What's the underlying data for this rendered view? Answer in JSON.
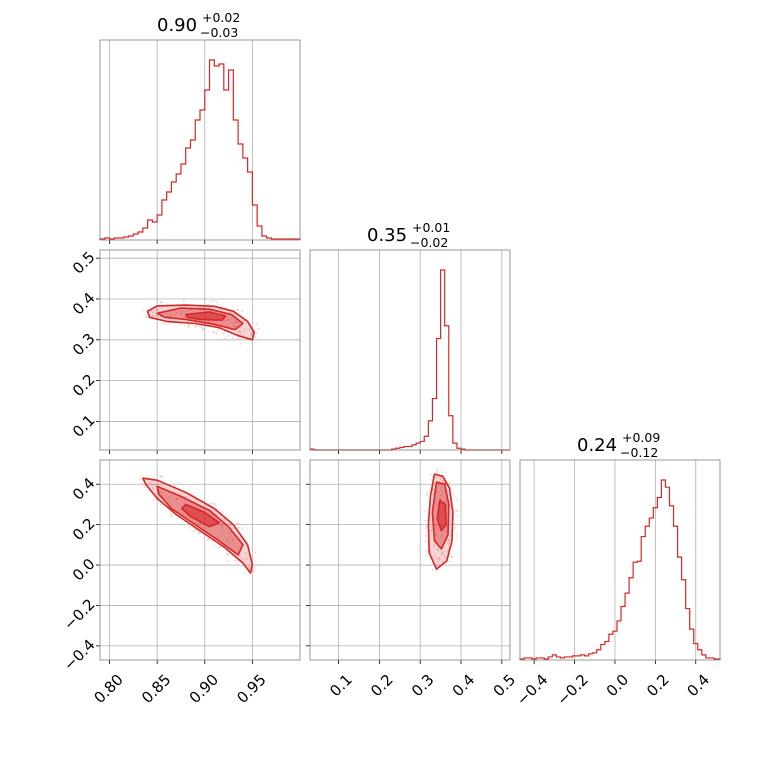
{
  "chart_data": {
    "type": "corner",
    "color": "#d62728",
    "parameters": [
      {
        "id": "p0",
        "range": [
          0.79,
          1.0
        ],
        "ticks": [
          0.8,
          0.85,
          0.9,
          0.95
        ],
        "tick_labels": [
          "0.80",
          "0.85",
          "0.90",
          "0.95"
        ],
        "title": {
          "value": "0.90",
          "plus": "+0.02",
          "minus": "−0.03"
        },
        "histogram": {
          "bins": [
            0.79,
            0.795,
            0.8,
            0.805,
            0.81,
            0.815,
            0.82,
            0.825,
            0.83,
            0.835,
            0.84,
            0.845,
            0.85,
            0.855,
            0.86,
            0.865,
            0.87,
            0.875,
            0.88,
            0.885,
            0.89,
            0.895,
            0.9,
            0.905,
            0.91,
            0.915,
            0.92,
            0.925,
            0.93,
            0.935,
            0.94,
            0.945,
            0.95,
            0.955,
            0.96,
            0.965,
            0.97,
            0.975,
            0.98,
            0.985,
            0.99,
            0.995,
            1.0
          ],
          "counts": [
            1,
            2,
            1,
            2,
            2,
            3,
            4,
            6,
            8,
            12,
            20,
            18,
            25,
            40,
            48,
            58,
            66,
            76,
            92,
            100,
            120,
            130,
            150,
            180,
            174,
            176,
            150,
            170,
            120,
            96,
            82,
            68,
            35,
            14,
            4,
            2,
            1,
            1,
            1,
            1,
            1,
            1
          ]
        }
      },
      {
        "id": "p1",
        "range": [
          0.03,
          0.52
        ],
        "ticks": [
          0.1,
          0.2,
          0.3,
          0.4,
          0.5
        ],
        "tick_labels": [
          "0.1",
          "0.2",
          "0.3",
          "0.4",
          "0.5"
        ],
        "title": {
          "value": "0.35",
          "plus": "+0.01",
          "minus": "−0.02"
        },
        "histogram": {
          "bins": [
            0.03,
            0.04,
            0.05,
            0.06,
            0.07,
            0.08,
            0.09,
            0.1,
            0.11,
            0.12,
            0.13,
            0.14,
            0.15,
            0.16,
            0.17,
            0.18,
            0.19,
            0.2,
            0.21,
            0.22,
            0.23,
            0.24,
            0.25,
            0.26,
            0.27,
            0.28,
            0.29,
            0.3,
            0.31,
            0.32,
            0.33,
            0.34,
            0.35,
            0.36,
            0.37,
            0.38,
            0.39,
            0.4,
            0.41,
            0.42,
            0.43,
            0.44,
            0.45,
            0.46,
            0.47,
            0.48,
            0.49,
            0.5,
            0.51,
            0.52
          ],
          "counts": [
            1,
            0,
            0,
            0,
            0,
            0,
            0,
            0,
            0,
            0,
            0,
            0,
            0,
            0,
            0,
            0,
            0,
            0,
            0,
            0,
            1,
            2,
            3,
            4,
            4,
            6,
            8,
            10,
            16,
            34,
            60,
            130,
            210,
            145,
            40,
            8,
            2,
            1,
            0,
            0,
            0,
            0,
            0,
            0,
            0,
            0,
            0,
            0,
            0
          ]
        }
      },
      {
        "id": "p2",
        "range": [
          -0.47,
          0.52
        ],
        "ticks": [
          -0.4,
          -0.2,
          0.0,
          0.2,
          0.4
        ],
        "tick_labels": [
          "−0.4",
          "−0.2",
          "0.0",
          "0.2",
          "0.4"
        ],
        "title": {
          "value": "0.24",
          "plus": "+0.09",
          "minus": "−0.12"
        },
        "histogram": {
          "bins": [
            -0.47,
            -0.45,
            -0.43,
            -0.41,
            -0.39,
            -0.37,
            -0.35,
            -0.33,
            -0.31,
            -0.29,
            -0.27,
            -0.25,
            -0.23,
            -0.21,
            -0.19,
            -0.17,
            -0.15,
            -0.13,
            -0.11,
            -0.09,
            -0.07,
            -0.05,
            -0.03,
            -0.01,
            0.01,
            0.03,
            0.05,
            0.07,
            0.09,
            0.11,
            0.13,
            0.15,
            0.17,
            0.19,
            0.21,
            0.23,
            0.25,
            0.27,
            0.29,
            0.31,
            0.33,
            0.35,
            0.37,
            0.39,
            0.41,
            0.43,
            0.45,
            0.47,
            0.49,
            0.52
          ],
          "counts": [
            1,
            2,
            2,
            1,
            2,
            2,
            1,
            3,
            5,
            3,
            2,
            3,
            3,
            4,
            4,
            5,
            4,
            6,
            7,
            10,
            15,
            18,
            25,
            28,
            38,
            52,
            65,
            80,
            95,
            96,
            120,
            130,
            138,
            148,
            158,
            175,
            168,
            150,
            130,
            100,
            78,
            50,
            30,
            16,
            10,
            5,
            2,
            2,
            1
          ]
        }
      }
    ],
    "pairs": [
      {
        "x": "p0",
        "y": "p1",
        "levels": [
          {
            "fill": 0.2,
            "points": [
              [
                0.84,
                0.37
              ],
              [
                0.85,
                0.383
              ],
              [
                0.88,
                0.385
              ],
              [
                0.91,
                0.382
              ],
              [
                0.93,
                0.37
              ],
              [
                0.945,
                0.345
              ],
              [
                0.952,
                0.318
              ],
              [
                0.95,
                0.3
              ],
              [
                0.935,
                0.31
              ],
              [
                0.915,
                0.33
              ],
              [
                0.89,
                0.34
              ],
              [
                0.86,
                0.345
              ],
              [
                0.842,
                0.355
              ]
            ]
          },
          {
            "fill": 0.4,
            "points": [
              [
                0.85,
                0.365
              ],
              [
                0.875,
                0.378
              ],
              [
                0.905,
                0.375
              ],
              [
                0.928,
                0.362
              ],
              [
                0.94,
                0.34
              ],
              [
                0.932,
                0.325
              ],
              [
                0.91,
                0.338
              ],
              [
                0.88,
                0.35
              ],
              [
                0.858,
                0.355
              ]
            ]
          },
          {
            "fill": 0.6,
            "points": [
              [
                0.88,
                0.362
              ],
              [
                0.905,
                0.368
              ],
              [
                0.922,
                0.358
              ],
              [
                0.918,
                0.348
              ],
              [
                0.895,
                0.35
              ],
              [
                0.882,
                0.355
              ]
            ]
          }
        ]
      },
      {
        "x": "p0",
        "y": "p2",
        "levels": [
          {
            "fill": 0.2,
            "points": [
              [
                0.835,
                0.43
              ],
              [
                0.85,
                0.42
              ],
              [
                0.88,
                0.36
              ],
              [
                0.91,
                0.28
              ],
              [
                0.93,
                0.2
              ],
              [
                0.945,
                0.1
              ],
              [
                0.95,
                0.0
              ],
              [
                0.948,
                -0.04
              ],
              [
                0.94,
                0.01
              ],
              [
                0.92,
                0.09
              ],
              [
                0.895,
                0.17
              ],
              [
                0.87,
                0.25
              ],
              [
                0.85,
                0.33
              ],
              [
                0.838,
                0.4
              ]
            ]
          },
          {
            "fill": 0.4,
            "points": [
              [
                0.85,
                0.39
              ],
              [
                0.875,
                0.34
              ],
              [
                0.905,
                0.27
              ],
              [
                0.925,
                0.19
              ],
              [
                0.94,
                0.1
              ],
              [
                0.935,
                0.05
              ],
              [
                0.915,
                0.12
              ],
              [
                0.89,
                0.2
              ],
              [
                0.865,
                0.28
              ],
              [
                0.852,
                0.35
              ]
            ]
          },
          {
            "fill": 0.6,
            "points": [
              [
                0.88,
                0.3
              ],
              [
                0.9,
                0.26
              ],
              [
                0.915,
                0.21
              ],
              [
                0.905,
                0.19
              ],
              [
                0.885,
                0.24
              ],
              [
                0.876,
                0.28
              ]
            ]
          }
        ]
      },
      {
        "x": "p1",
        "y": "p2",
        "levels": [
          {
            "fill": 0.2,
            "points": [
              [
                0.335,
                0.45
              ],
              [
                0.355,
                0.44
              ],
              [
                0.372,
                0.38
              ],
              [
                0.38,
                0.26
              ],
              [
                0.378,
                0.12
              ],
              [
                0.365,
                0.02
              ],
              [
                0.34,
                -0.02
              ],
              [
                0.322,
                0.06
              ],
              [
                0.32,
                0.2
              ],
              [
                0.325,
                0.34
              ]
            ]
          },
          {
            "fill": 0.4,
            "points": [
              [
                0.34,
                0.41
              ],
              [
                0.36,
                0.4
              ],
              [
                0.37,
                0.3
              ],
              [
                0.368,
                0.15
              ],
              [
                0.352,
                0.08
              ],
              [
                0.335,
                0.12
              ],
              [
                0.33,
                0.26
              ]
            ]
          },
          {
            "fill": 0.6,
            "points": [
              [
                0.348,
                0.32
              ],
              [
                0.362,
                0.3
              ],
              [
                0.363,
                0.2
              ],
              [
                0.352,
                0.17
              ],
              [
                0.342,
                0.23
              ]
            ]
          }
        ]
      }
    ]
  }
}
